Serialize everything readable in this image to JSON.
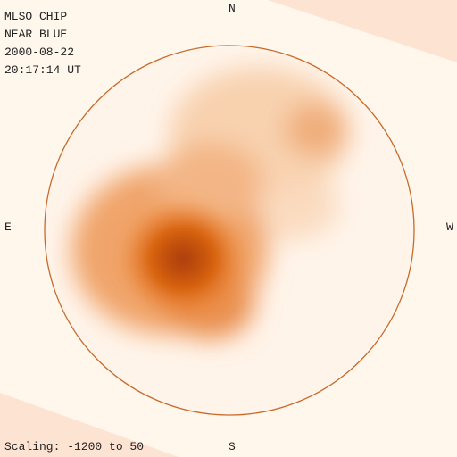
{
  "header": {
    "lines": [
      "MLSO CHIP",
      "NEAR BLUE",
      "2000-08-22",
      "20:17:14 UT"
    ]
  },
  "directions": {
    "north": "N",
    "east": "E",
    "west": "W",
    "south": "S"
  },
  "scaling": "Scaling: -1200 to 50"
}
